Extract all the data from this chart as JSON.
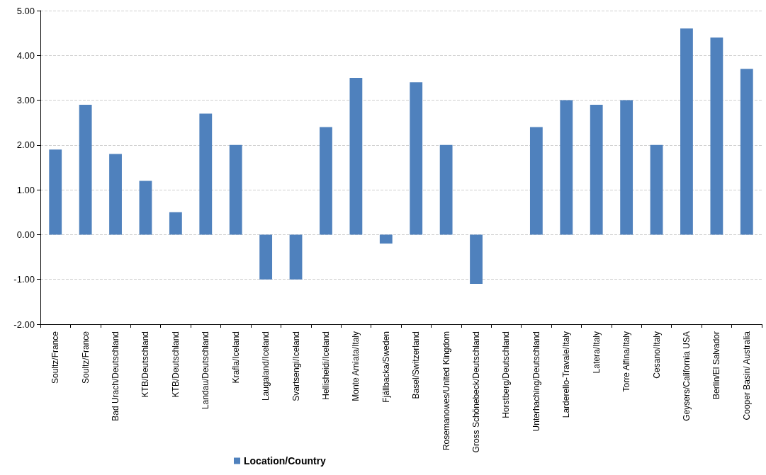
{
  "chart_data": {
    "type": "bar",
    "categories": [
      "Soultz/France",
      "Soultz/France",
      "Bad Urach/Deutschland",
      "KTB/Deutschland",
      "KTB/Deutschland",
      "Landau/Deutschland",
      "Krafla/Iceland",
      "Laugaland/Iceland",
      "Svartsengi/Iceland",
      "Hellisheidi/Iceland",
      "Monte Amiata/Italy",
      "Fjällbacka/Sweden",
      "Basel/Switzerland",
      "Rosemanowes/United Kingdom",
      "Gross Schönebeck/Deutschland",
      "Horstberg/Deutschland",
      "Unterhaching/Deutschland",
      "Larderello-Travale/Italy",
      "Latera/Italy",
      "Torre Alfina/Italy",
      "Cesano/Italy",
      "Geysers/California USA",
      "Berlín/El Salvador",
      "Cooper Basin/ Australia"
    ],
    "series": [
      {
        "name": "Location/Country",
        "color": "#4f81bd",
        "values": [
          1.9,
          2.9,
          1.8,
          1.2,
          0.5,
          2.7,
          2.0,
          -1.0,
          -1.0,
          2.4,
          3.5,
          -0.2,
          3.4,
          2.0,
          -1.1,
          0,
          2.4,
          3.0,
          2.9,
          3.0,
          2.0,
          4.6,
          4.4,
          3.7
        ]
      }
    ],
    "ylim": [
      -2,
      5
    ],
    "yticks": [
      {
        "value": -2,
        "label": "-2.00"
      },
      {
        "value": -1,
        "label": "-1.00"
      },
      {
        "value": 0,
        "label": "0.00"
      },
      {
        "value": 1,
        "label": "1.00"
      },
      {
        "value": 2,
        "label": "2.00"
      },
      {
        "value": 3,
        "label": "3.00"
      },
      {
        "value": 4,
        "label": "4.00"
      },
      {
        "value": 5,
        "label": "5.00"
      }
    ],
    "grid": "y",
    "legend": "bottom"
  }
}
